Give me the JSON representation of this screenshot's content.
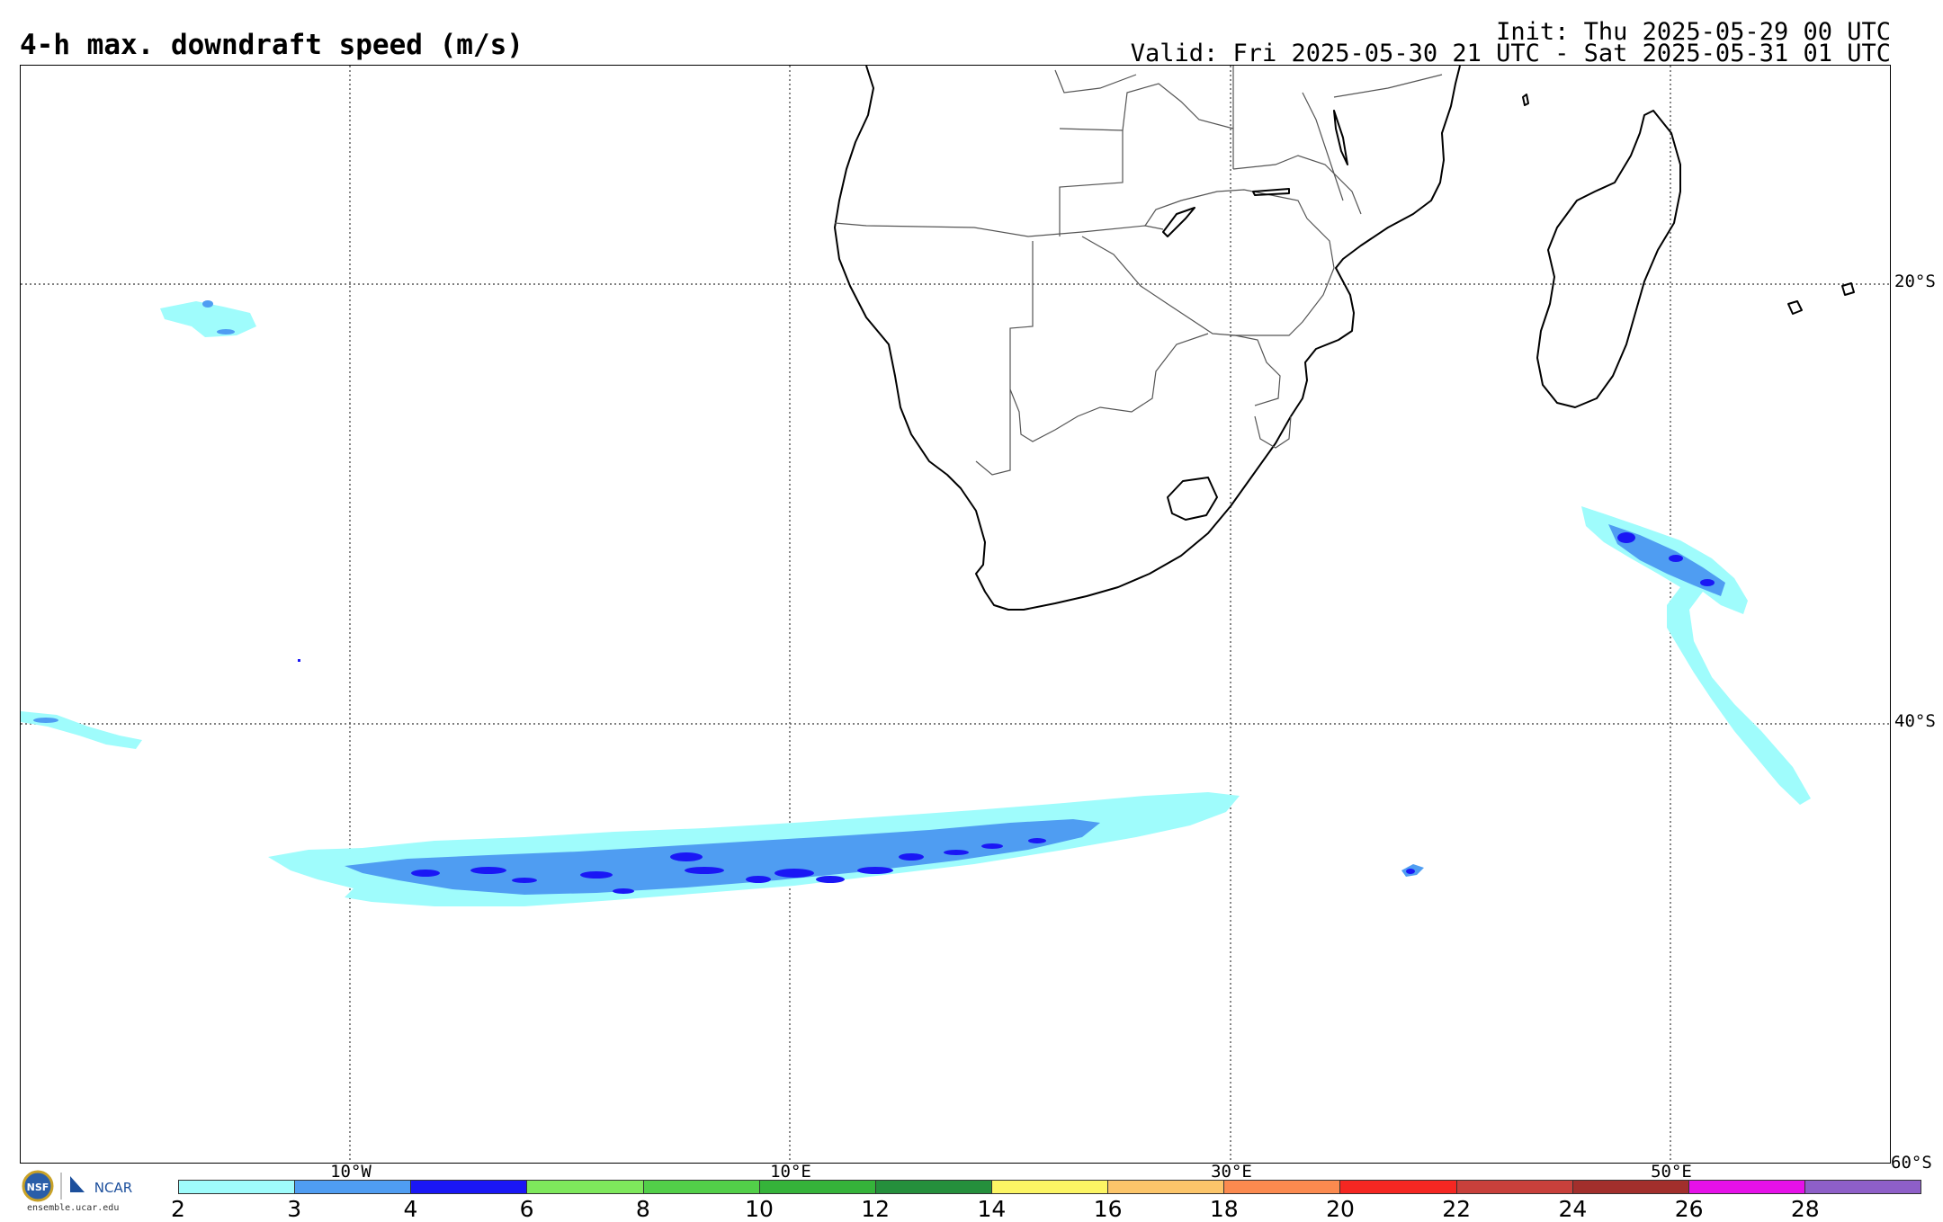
{
  "title": "4-h max. downdraft speed (m/s)",
  "init_time": "Init: Thu 2025-05-29 00 UTC",
  "valid_time": "Valid: Fri 2025-05-30 21 UTC - Sat 2025-05-31 01 UTC",
  "map": {
    "region": "Southern Africa and South Atlantic / Indian Ocean",
    "lat_labels": [
      "20°S",
      "40°S",
      "60°S"
    ],
    "lon_labels": [
      "10°W",
      "10°E",
      "30°E",
      "50°E"
    ],
    "gridlines": true
  },
  "legend": {
    "levels": [
      "2",
      "3",
      "4",
      "6",
      "8",
      "10",
      "12",
      "14",
      "16",
      "18",
      "20",
      "22",
      "24",
      "26",
      "28"
    ],
    "colors": [
      "#9ffcfc",
      "#4f9df2",
      "#1a17f5",
      "#7ee85c",
      "#52cf49",
      "#35b33a",
      "#258f3c",
      "#fcf564",
      "#fcc56a",
      "#fb8a4f",
      "#f52722",
      "#c8403b",
      "#a22f2c",
      "#e611e9",
      "#8e5fc8"
    ]
  },
  "logos": {
    "nsf": "NSF",
    "ncar": "NCAR",
    "url": "ensemble.ucar.edu"
  }
}
